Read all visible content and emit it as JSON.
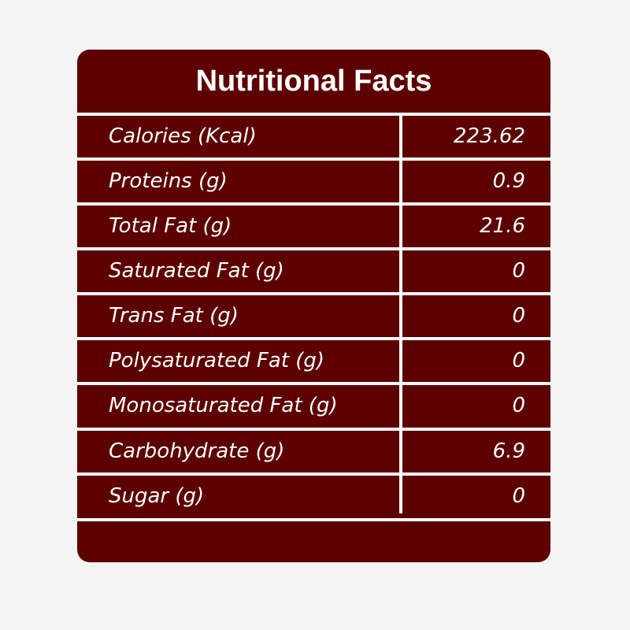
{
  "title": "Nutritional Facts",
  "colors": {
    "card_background": "#5c0000",
    "page_background": "#f4f4f4",
    "text": "#ffffff",
    "divider": "#ffffff"
  },
  "rows": [
    {
      "label": "Calories (Kcal)",
      "value": "223.62"
    },
    {
      "label": "Proteins (g)",
      "value": "0.9"
    },
    {
      "label": "Total Fat (g)",
      "value": "21.6"
    },
    {
      "label": "Saturated Fat (g)",
      "value": "0"
    },
    {
      "label": "Trans Fat (g)",
      "value": "0"
    },
    {
      "label": "Polysaturated Fat (g)",
      "value": "0"
    },
    {
      "label": "Monosaturated Fat (g)",
      "value": "0"
    },
    {
      "label": "Carbohydrate (g)",
      "value": "6.9"
    },
    {
      "label": "Sugar (g)",
      "value": "0"
    }
  ]
}
